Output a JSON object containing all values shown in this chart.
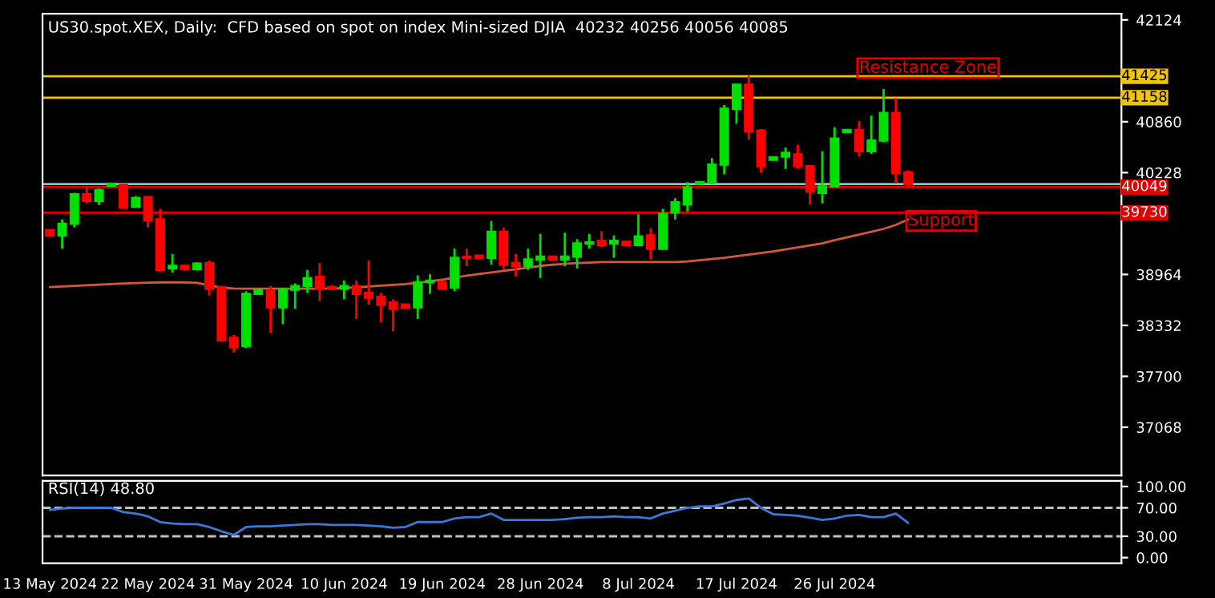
{
  "chart_data": [
    {
      "type": "candlestick",
      "title": "US30.spot.XEX, Daily:  CFD based on spot on index Mini-sized DJIA  40232 40256 40056 40085",
      "categories": [
        null,
        null,
        null,
        null,
        null,
        null,
        null,
        null,
        null,
        null,
        null,
        null,
        null,
        null,
        null,
        null,
        null,
        null,
        null,
        null,
        null,
        null,
        null,
        null,
        null,
        null,
        null,
        null,
        null,
        null,
        null,
        null,
        null,
        null,
        null,
        null,
        null,
        null,
        null,
        null,
        null,
        null,
        null,
        null,
        null,
        null,
        null,
        null,
        null,
        null,
        null,
        null,
        null,
        null,
        null,
        null,
        null,
        null,
        null,
        null,
        null,
        null,
        null,
        null,
        null,
        null,
        null,
        null,
        null,
        null,
        null
      ],
      "ohlc": [
        [
          39515,
          39515,
          39449,
          39449
        ],
        [
          39449,
          39647,
          39284,
          39594
        ],
        [
          39594,
          39978,
          39548,
          39958
        ],
        [
          39958,
          40044,
          39845,
          39878
        ],
        [
          39878,
          40031,
          39825,
          40011
        ],
        [
          40064,
          40090,
          40064,
          40090
        ],
        [
          40077,
          40090,
          39779,
          39792
        ],
        [
          39806,
          39938,
          39792,
          39911
        ],
        [
          39924,
          39938,
          39548,
          39634
        ],
        [
          39647,
          39779,
          38999,
          39019
        ],
        [
          39039,
          39218,
          38986,
          39072
        ],
        [
          39072,
          39072,
          39013,
          39032
        ],
        [
          39032,
          39118,
          39013,
          39098
        ],
        [
          39105,
          39138,
          38702,
          38788
        ],
        [
          38808,
          38821,
          38128,
          38147
        ],
        [
          38180,
          38213,
          37995,
          38061
        ],
        [
          38075,
          38755,
          38048,
          38722
        ],
        [
          38722,
          38788,
          38709,
          38768
        ],
        [
          38755,
          38821,
          38240,
          38557
        ],
        [
          38557,
          38801,
          38346,
          38775
        ],
        [
          38775,
          38854,
          38537,
          38821
        ],
        [
          38821,
          39019,
          38735,
          38920
        ],
        [
          38934,
          39105,
          38636,
          38788
        ],
        [
          38808,
          38834,
          38768,
          38788
        ],
        [
          38788,
          38887,
          38656,
          38821
        ],
        [
          38821,
          38887,
          38412,
          38722
        ],
        [
          38735,
          39138,
          38590,
          38676
        ],
        [
          38689,
          38735,
          38372,
          38590
        ],
        [
          38617,
          38656,
          38260,
          38537
        ],
        [
          38590,
          38590,
          38537,
          38551
        ],
        [
          38557,
          38953,
          38412,
          38868
        ],
        [
          38868,
          38966,
          38722,
          38887
        ],
        [
          38868,
          38887,
          38775,
          38788
        ],
        [
          38801,
          39284,
          38755,
          39171
        ],
        [
          39185,
          39284,
          39066,
          39171
        ],
        [
          39198,
          39198,
          39165,
          39165
        ],
        [
          39171,
          39627,
          39085,
          39495
        ],
        [
          39495,
          39548,
          39019,
          39085
        ],
        [
          39105,
          39218,
          38940,
          39072
        ],
        [
          39072,
          39284,
          39019,
          39151
        ],
        [
          39151,
          39469,
          38920,
          39185
        ],
        [
          39185,
          39185,
          39138,
          39151
        ],
        [
          39151,
          39482,
          39066,
          39185
        ],
        [
          39185,
          39403,
          39039,
          39350
        ],
        [
          39350,
          39469,
          39284,
          39363
        ],
        [
          39383,
          39502,
          39304,
          39330
        ],
        [
          39350,
          39449,
          39171,
          39383
        ],
        [
          39370,
          39370,
          39330,
          39330
        ],
        [
          39330,
          39713,
          39317,
          39436
        ],
        [
          39449,
          39535,
          39152,
          39284
        ],
        [
          39284,
          39779,
          39271,
          39713
        ],
        [
          39733,
          39911,
          39647,
          39859
        ],
        [
          39832,
          40110,
          39746,
          40044
        ],
        [
          40090,
          40123,
          40090,
          40110
        ],
        [
          40110,
          40407,
          40077,
          40328
        ],
        [
          40328,
          41068,
          40209,
          41021
        ],
        [
          41021,
          41332,
          40836,
          41319
        ],
        [
          41319,
          41431,
          40638,
          40737
        ],
        [
          40750,
          40770,
          40229,
          40308
        ],
        [
          40388,
          40420,
          40388,
          40420
        ],
        [
          40427,
          40539,
          40275,
          40473
        ],
        [
          40453,
          40572,
          40275,
          40308
        ],
        [
          40308,
          40321,
          39832,
          39991
        ],
        [
          39978,
          40493,
          39845,
          40057
        ],
        [
          40057,
          40790,
          40044,
          40651
        ],
        [
          40731,
          40757,
          40731,
          40757
        ],
        [
          40757,
          40869,
          40427,
          40493
        ],
        [
          40493,
          40935,
          40460,
          40625
        ],
        [
          40625,
          41266,
          40605,
          40968
        ],
        [
          40968,
          41154,
          40096,
          40222
        ],
        [
          40232,
          40256,
          40056,
          40085
        ]
      ],
      "series": [
        {
          "type": "line",
          "color": "#d2583a",
          "values": [
            38808,
            38815,
            38822,
            38830,
            38838,
            38845,
            38852,
            38858,
            38862,
            38866,
            38868,
            38866,
            38860,
            38830,
            38800,
            38790,
            38788,
            38788,
            38788,
            38788,
            38788,
            38788,
            38788,
            38790,
            38795,
            38805,
            38815,
            38825,
            38835,
            38845,
            38860,
            38880,
            38900,
            38925,
            38950,
            38970,
            38990,
            39010,
            39030,
            39050,
            39070,
            39085,
            39095,
            39105,
            39112,
            39118,
            39118,
            39118,
            39118,
            39118,
            39118,
            39118,
            39125,
            39140,
            39155,
            39170,
            39190,
            39210,
            39230,
            39250,
            39275,
            39300,
            39325,
            39350,
            39390,
            39425,
            39460,
            39495,
            39530,
            39580,
            39647
          ]
        }
      ],
      "ylim": [
        36470,
        42200
      ],
      "yticks": [
        37068,
        37700,
        38332,
        38964,
        40228,
        40860,
        42124
      ],
      "ref_lines": [
        {
          "axis": "y",
          "value": 41425,
          "label": "41425",
          "color": "#f0c400"
        },
        {
          "axis": "y",
          "value": 41158,
          "label": "41158",
          "color": "#f0c400"
        },
        {
          "axis": "y",
          "value": 40085,
          "color": "#7fc8c8"
        },
        {
          "axis": "y",
          "value": 40049,
          "label": "40049",
          "color": "#e00000"
        },
        {
          "axis": "y",
          "value": 39730,
          "label": "39730",
          "color": "#e00000"
        }
      ],
      "annotations": [
        {
          "text": "Resistance Zone",
          "y": 41425
        },
        {
          "text": "Support",
          "y": 39730
        }
      ],
      "grid": false,
      "legend": false,
      "tick_labels": "y"
    },
    {
      "type": "line",
      "title": "RSI(14) 48.80",
      "categories": [
        "13 May 2024",
        null,
        null,
        null,
        null,
        null,
        null,
        null,
        "22 May 2024",
        null,
        null,
        null,
        null,
        null,
        null,
        null,
        "31 May 2024",
        null,
        null,
        null,
        null,
        null,
        null,
        null,
        "10 Jun 2024",
        null,
        null,
        null,
        null,
        null,
        null,
        null,
        "19 Jun 2024",
        null,
        null,
        null,
        null,
        null,
        null,
        null,
        "28 Jun 2024",
        null,
        null,
        null,
        null,
        null,
        null,
        null,
        "8 Jul 2024",
        null,
        null,
        null,
        null,
        null,
        null,
        null,
        "17 Jul 2024",
        null,
        null,
        null,
        null,
        null,
        null,
        null,
        "26 Jul 2024",
        null,
        null,
        null,
        null,
        null,
        null
      ],
      "series": [
        {
          "color": "#3c78d8",
          "values": [
            67,
            69,
            70,
            70,
            70,
            70,
            64,
            62,
            58,
            50,
            48,
            47,
            47,
            43,
            37,
            32,
            43,
            44,
            44,
            45,
            46,
            47,
            47,
            46,
            46,
            46,
            45,
            44,
            42,
            43,
            50,
            50,
            50,
            55,
            57,
            57,
            62,
            53,
            53,
            53,
            53,
            53,
            54,
            56,
            57,
            57,
            58,
            57,
            57,
            55,
            62,
            66,
            70,
            72,
            72,
            76,
            81,
            83,
            70,
            61,
            60,
            59,
            56,
            53,
            55,
            59,
            60,
            57,
            57,
            62,
            48.8
          ]
        }
      ],
      "ylim": [
        -8,
        108
      ],
      "yticks": [
        {
          "value": 0,
          "label": "0.00"
        },
        {
          "value": 30,
          "label": "30.00"
        },
        {
          "value": 70,
          "label": "70.00"
        },
        {
          "value": 100,
          "label": "100.00"
        }
      ],
      "ref_lines": [
        {
          "axis": "y",
          "value": 70,
          "color": "#c0c0c0",
          "line_style": "dashed"
        },
        {
          "axis": "y",
          "value": 30,
          "color": "#c0c0c0",
          "line_style": "dashed"
        }
      ],
      "grid": false,
      "legend": false
    }
  ]
}
